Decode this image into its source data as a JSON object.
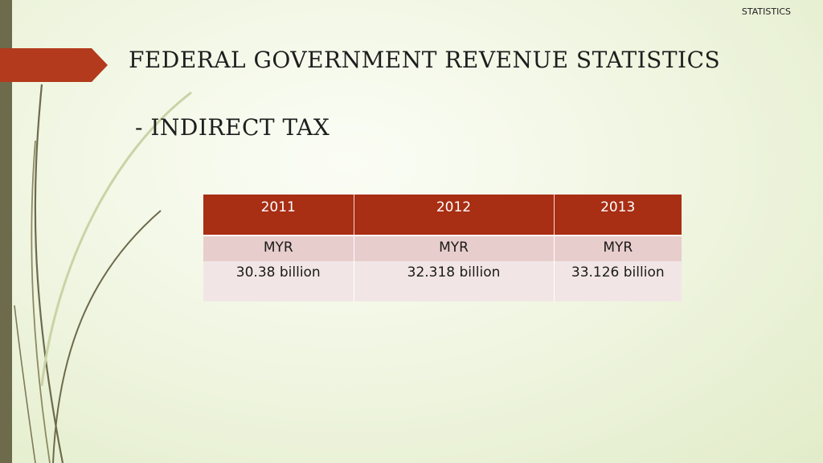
{
  "header": {
    "corner_label": "STATISTICS"
  },
  "slide": {
    "title": "FEDERAL  GOVERNMENT  REVENUE  STATISTICS",
    "subtitle": "- INDIRECT  TAX"
  },
  "table": {
    "columns": [
      "2011",
      "2012",
      "2013"
    ],
    "unit_row": [
      "MYR",
      "MYR",
      "MYR"
    ],
    "value_row": [
      "30.38 billion",
      "32.318 billion",
      "33.126 billion"
    ]
  },
  "colors": {
    "accent": "#b33a1c",
    "table_header": "#a82e14",
    "table_unit_row": "#e7cdcc",
    "table_value_row": "#f1e6e5",
    "left_bar": "#6e6a4c"
  }
}
